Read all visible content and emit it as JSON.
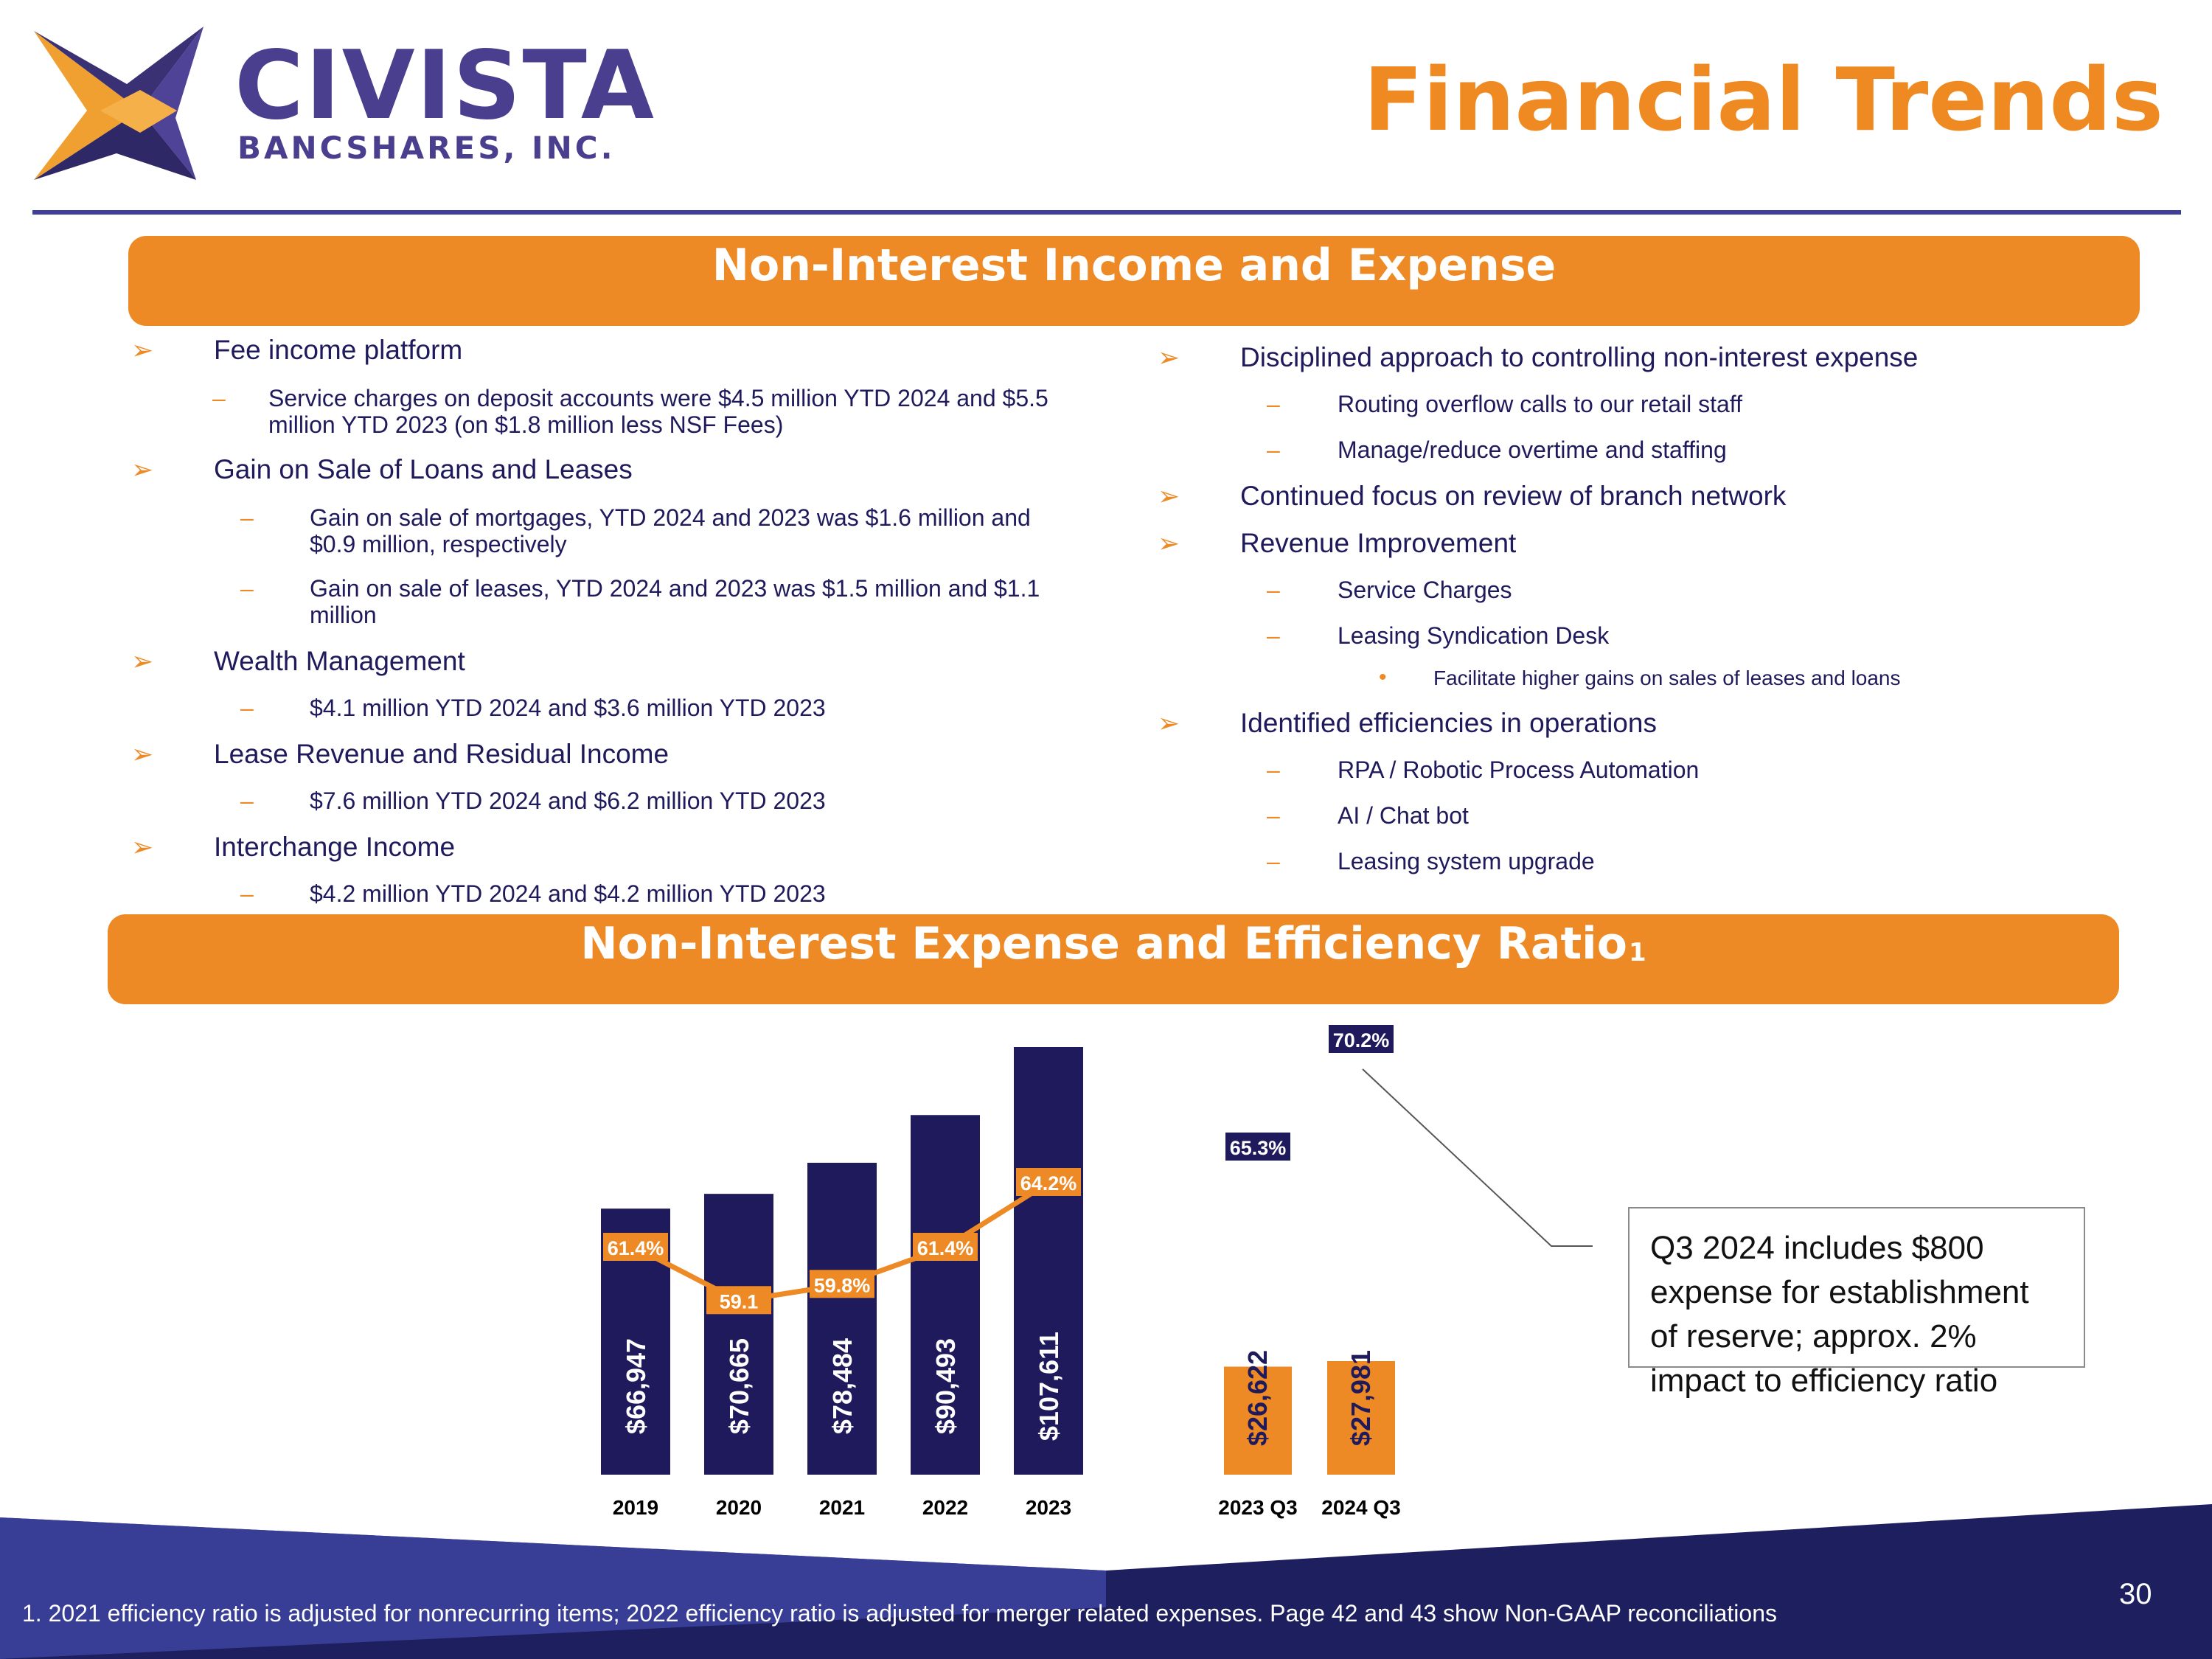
{
  "header": {
    "logo_name": "CIVISTA",
    "logo_subtitle": "BANCSHARES, INC.",
    "page_title": "Financial Trends",
    "colors": {
      "navy": "#1e1a5c",
      "orange": "#ee8a25",
      "purple": "#4a3f8f"
    }
  },
  "section1": {
    "title": "Non-Interest Income and Expense",
    "left": {
      "fee_income": "Fee income platform",
      "fee_income_sub_line1": "Service charges on deposit accounts were $4.5 million YTD 2024 and $5.5",
      "fee_income_sub_line2": "million YTD 2023 (on $1.8 million less NSF Fees)",
      "gain_on_sale": "Gain on Sale of Loans and Leases",
      "mortgages_line1": "Gain on sale of mortgages, YTD 2024 and 2023 was $1.6 million and",
      "mortgages_line2": "$0.9 million, respectively",
      "leases_line1": "Gain on sale of leases, YTD 2024 and 2023 was $1.5 million and $1.1",
      "leases_line2": "million",
      "wealth": "Wealth Management",
      "wealth_sub": "$4.1 million YTD 2024 and $3.6 million YTD 2023",
      "lease_revenue": "Lease Revenue and Residual Income",
      "lease_revenue_sub": "$7.6 million YTD 2024 and $6.2 million YTD 2023",
      "interchange": "Interchange Income",
      "interchange_sub": "$4.2 million YTD 2024 and $4.2 million YTD 2023"
    },
    "right": {
      "disciplined": "Disciplined approach to controlling non-interest expense",
      "routing": "Routing overflow calls to our retail staff",
      "overtime": "Manage/reduce overtime and staffing",
      "branch": "Continued focus on review of branch network",
      "revenue": "Revenue Improvement",
      "service_charges": "Service Charges",
      "leasing_desk": "Leasing Syndication Desk",
      "facilitate": "Facilitate higher gains on sales of leases and loans",
      "efficiencies": "Identified efficiencies in operations",
      "rpa": "RPA / Robotic Process Automation",
      "ai": "AI / Chat bot",
      "leasing_upgrade": "Leasing system upgrade"
    }
  },
  "section2": {
    "title": "Non-Interest Expense and Efficiency Ratio",
    "title_footnote": "1"
  },
  "chart_data": [
    {
      "type": "bar",
      "categories": [
        "2019",
        "2020",
        "2021",
        "2022",
        "2023"
      ],
      "series": [
        {
          "values": [
            66947,
            70665,
            78484,
            90493,
            107611
          ],
          "labels": [
            "$66,947",
            "$70,665",
            "$78,484",
            "$90,493",
            "$107,611"
          ],
          "color": "#1e1a5c"
        },
        {
          "type": "line",
          "values": [
            61.4,
            59.1,
            59.8,
            61.4,
            64.2
          ],
          "labels": [
            "61.4%",
            "59.1",
            "59.8%",
            "61.4%",
            "64.2%"
          ],
          "color": "#ee8a25"
        }
      ]
    },
    {
      "type": "bar",
      "categories": [
        "2023 Q3",
        "2024 Q3"
      ],
      "series": [
        {
          "values": [
            26622,
            27981
          ],
          "labels": [
            "$26,622",
            "$27,981"
          ],
          "color": "#ee8a25"
        },
        {
          "type": "point",
          "values": [
            65.3,
            70.2
          ],
          "labels": [
            "65.3%",
            "70.2%"
          ],
          "color": "#1e1a5c"
        }
      ]
    }
  ],
  "callout": {
    "line1": "Q3 2024 includes $800",
    "line2": "expense for establishment",
    "line3": "of reserve; approx. 2%",
    "line4": "impact to efficiency ratio"
  },
  "footer": {
    "footnote": "1. 2021 efficiency ratio is adjusted for nonrecurring items; 2022 efficiency ratio is adjusted for merger related expenses. Page 42 and 43 show Non-GAAP reconciliations",
    "page_number": "30"
  }
}
